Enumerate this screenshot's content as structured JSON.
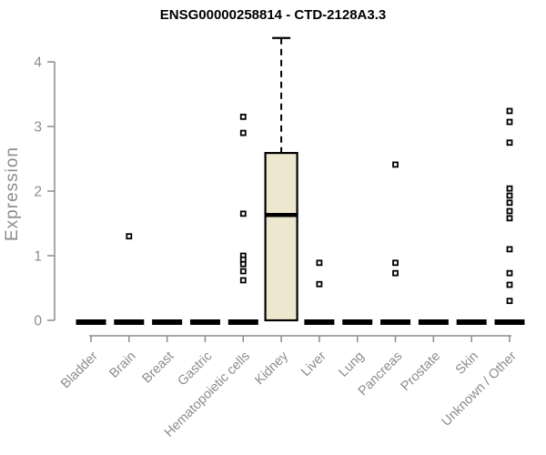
{
  "chart_data": {
    "type": "boxplot",
    "title": "ENSG00000258814 - CTD-2128A3.3",
    "xlabel": "",
    "ylabel": "Expression",
    "ylim": [
      0,
      4.4
    ],
    "y_ticks": [
      0,
      1,
      2,
      3,
      4
    ],
    "grid": false,
    "legend": "none",
    "categories": [
      "Bladder",
      "Brain",
      "Breast",
      "Gastric",
      "Hematopoietic cells",
      "Kidney",
      "Liver",
      "Lung",
      "Pancreas",
      "Prostate",
      "Skin",
      "Unknown / Other"
    ],
    "boxes": [
      {
        "category": "Bladder",
        "q1": 0,
        "median": 0,
        "q3": 0,
        "whisker_low": 0,
        "whisker_high": 0,
        "outliers": []
      },
      {
        "category": "Brain",
        "q1": 0,
        "median": 0,
        "q3": 0,
        "whisker_low": 0,
        "whisker_high": 0,
        "outliers": [
          1.3
        ]
      },
      {
        "category": "Breast",
        "q1": 0,
        "median": 0,
        "q3": 0,
        "whisker_low": 0,
        "whisker_high": 0,
        "outliers": []
      },
      {
        "category": "Gastric",
        "q1": 0,
        "median": 0,
        "q3": 0,
        "whisker_low": 0,
        "whisker_high": 0,
        "outliers": []
      },
      {
        "category": "Hematopoietic cells",
        "q1": 0,
        "median": 0,
        "q3": 0,
        "whisker_low": 0,
        "whisker_high": 0,
        "outliers": [
          3.15,
          2.9,
          1.65,
          1.0,
          0.94,
          0.87,
          0.76,
          0.62
        ]
      },
      {
        "category": "Kidney",
        "q1": 0,
        "median": 1.63,
        "q3": 2.59,
        "whisker_low": 0,
        "whisker_high": 4.37,
        "outliers": []
      },
      {
        "category": "Liver",
        "q1": 0,
        "median": 0,
        "q3": 0,
        "whisker_low": 0,
        "whisker_high": 0,
        "outliers": [
          0.89,
          0.56
        ]
      },
      {
        "category": "Lung",
        "q1": 0,
        "median": 0,
        "q3": 0,
        "whisker_low": 0,
        "whisker_high": 0,
        "outliers": []
      },
      {
        "category": "Pancreas",
        "q1": 0,
        "median": 0,
        "q3": 0,
        "whisker_low": 0,
        "whisker_high": 0,
        "outliers": [
          2.41,
          0.89,
          0.73
        ]
      },
      {
        "category": "Prostate",
        "q1": 0,
        "median": 0,
        "q3": 0,
        "whisker_low": 0,
        "whisker_high": 0,
        "outliers": []
      },
      {
        "category": "Skin",
        "q1": 0,
        "median": 0,
        "q3": 0,
        "whisker_low": 0,
        "whisker_high": 0,
        "outliers": []
      },
      {
        "category": "Unknown / Other",
        "q1": 0,
        "median": 0,
        "q3": 0,
        "whisker_low": 0,
        "whisker_high": 0,
        "outliers": [
          3.24,
          3.07,
          2.75,
          2.04,
          1.93,
          1.82,
          1.69,
          1.58,
          1.1,
          0.73,
          0.55,
          0.3
        ]
      }
    ],
    "colors": {
      "background": "#ffffff",
      "title": "#000000",
      "axis": "#8c8c8c",
      "tick_label": "#8c8c8c",
      "box_fill": "#ece7ce",
      "box_border": "#000000",
      "median": "#000000",
      "bar": "#000000",
      "outlier": "#000000",
      "outlier_fill": "#ffffff"
    }
  }
}
